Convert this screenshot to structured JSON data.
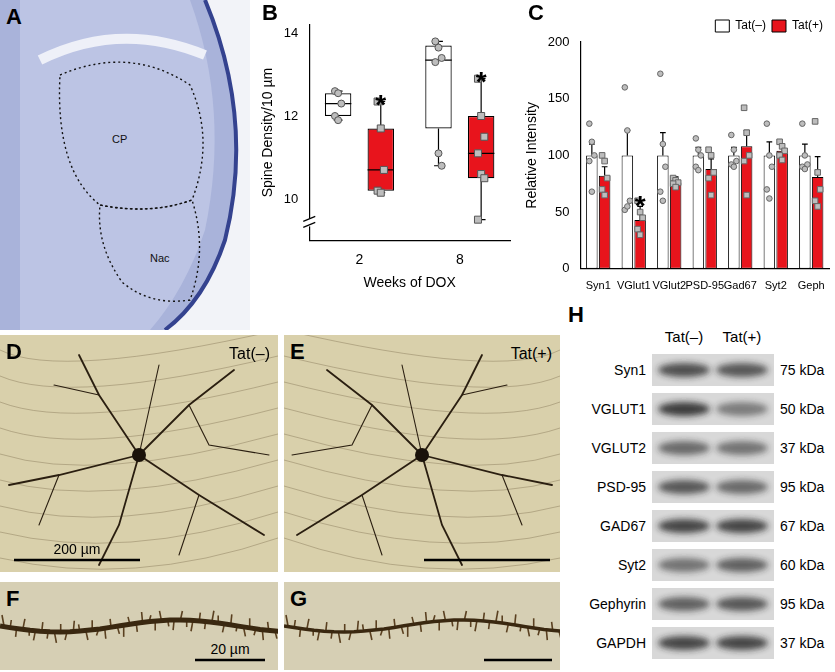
{
  "chart_data": [
    {
      "panel": "B",
      "type": "box",
      "categories": [
        "2",
        "8"
      ],
      "xlabel": "Weeks of DOX",
      "ylabel": "Spine Density/10 µm",
      "ylim": [
        9,
        14.2
      ],
      "yticks": [
        10,
        12,
        14
      ],
      "grid": false,
      "series": [
        {
          "color": "#ffffff",
          "marker": "circle",
          "boxes": [
            {
              "whisker_low": 11.9,
              "q1": 12.0,
              "median": 12.3,
              "q3": 12.55,
              "whisker_high": 12.6,
              "points": [
                12.6,
                12.55,
                12.3,
                12.0,
                11.9
              ]
            },
            {
              "whisker_low": 10.8,
              "q1": 11.7,
              "median": 13.35,
              "q3": 13.7,
              "whisker_high": 13.8,
              "points": [
                13.8,
                13.65,
                13.4,
                13.3,
                11.1,
                10.8
              ]
            }
          ]
        },
        {
          "color": "#e8141c",
          "marker": "square",
          "boxes": [
            {
              "whisker_low": 10.15,
              "q1": 10.2,
              "median": 10.7,
              "q3": 11.7,
              "whisker_high": 12.35,
              "points": [
                12.35,
                11.7,
                10.7,
                10.2,
                10.15
              ]
            },
            {
              "whisker_low": 9.5,
              "q1": 10.5,
              "median": 11.1,
              "q3": 12.0,
              "whisker_high": 12.9,
              "points": [
                12.9,
                12.0,
                11.5,
                11.1,
                10.6,
                10.5,
                9.5
              ]
            }
          ],
          "annotations": [
            {
              "category": "2",
              "text": "*"
            },
            {
              "category": "8",
              "text": "*"
            }
          ]
        }
      ]
    },
    {
      "panel": "C",
      "type": "bar",
      "categories": [
        "Syn1",
        "VGlut1",
        "VGlut2",
        "PSD-95",
        "Gad67",
        "Syt2",
        "Geph"
      ],
      "ylabel": "Relative Intensity",
      "ylim": [
        0,
        200
      ],
      "yticks": [
        0,
        50,
        100,
        150,
        200
      ],
      "grid": false,
      "legend": "upper right",
      "series": [
        {
          "name": "Tat(–)",
          "color": "#ffffff",
          "marker": "circle",
          "values": [
            100,
            100,
            100,
            100,
            100,
            100,
            100
          ],
          "errors": [
            10,
            22,
            20,
            7,
            7,
            12,
            10
          ],
          "points": [
            [
              128,
              112,
              100,
              95,
              68
            ],
            [
              160,
              122,
              60,
              52,
              55
            ],
            [
              172,
              110,
              90,
              68,
              60
            ],
            [
              115,
              105,
              100,
              90,
              87
            ],
            [
              118,
              105,
              95,
              92,
              90
            ],
            [
              128,
              100,
              90,
              70,
              62
            ],
            [
              128,
              100,
              92,
              90,
              88
            ]
          ]
        },
        {
          "name": "Tat(+)",
          "color": "#e8141c",
          "marker": "square",
          "values": [
            82,
            43,
            76,
            88,
            108,
            104,
            81
          ],
          "errors": [
            8,
            12,
            5,
            9,
            14,
            5,
            18
          ],
          "points": [
            [
              100,
              95,
              80,
              70,
              65
            ],
            [
              60,
              50,
              45,
              35,
              30
            ],
            [
              80,
              78,
              76,
              75,
              72
            ],
            [
              105,
              100,
              85,
              80,
              65
            ],
            [
              142,
              120,
              100,
              95,
              65
            ],
            [
              112,
              108,
              104,
              100,
              96
            ],
            [
              130,
              85,
              70,
              60,
              55
            ]
          ],
          "annotations": [
            {
              "category": "VGlut1",
              "text": "*"
            }
          ]
        }
      ]
    }
  ],
  "images": {
    "A": {
      "panel": "A",
      "regions": [
        "CP",
        "Nac"
      ]
    },
    "D": {
      "panel": "D",
      "group": "Tat(–)",
      "scale_bar": "200 µm"
    },
    "E": {
      "panel": "E",
      "group": "Tat(+)"
    },
    "F": {
      "panel": "F",
      "scale_bar": "20 µm"
    },
    "G": {
      "panel": "G"
    },
    "H": {
      "panel": "H",
      "columns": [
        "Tat(–)",
        "Tat(+)"
      ],
      "rows": [
        {
          "protein": "Syn1",
          "size": "75 kDa"
        },
        {
          "protein": "VGLUT1",
          "size": "50 kDa"
        },
        {
          "protein": "VGLUT2",
          "size": "37 kDa"
        },
        {
          "protein": "PSD-95",
          "size": "95 kDa"
        },
        {
          "protein": "GAD67",
          "size": "67 kDa"
        },
        {
          "protein": "Syt2",
          "size": "60 kDa"
        },
        {
          "protein": "Gephyrin",
          "size": "95 kDa"
        },
        {
          "protein": "GAPDH",
          "size": "37 kDa"
        }
      ]
    }
  }
}
